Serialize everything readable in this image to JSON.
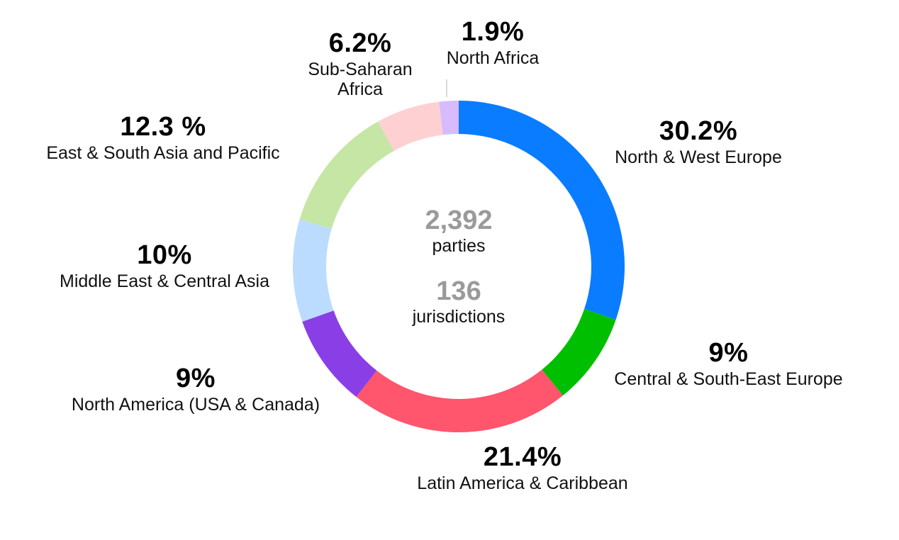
{
  "chart_data": {
    "type": "pie",
    "variant": "donut",
    "slices": [
      {
        "label": "North & West Europe",
        "pct_text": "30.2%",
        "value": 30.2,
        "color": "#0a7cff"
      },
      {
        "label": "Central & South-East Europe",
        "pct_text": "9%",
        "value": 9,
        "color": "#00bf00"
      },
      {
        "label": "Latin America & Caribbean",
        "pct_text": "21.4%",
        "value": 21.4,
        "color": "#ff556d"
      },
      {
        "label": "North America (USA & Canada)",
        "pct_text": "9%",
        "value": 9,
        "color": "#8a3fe6"
      },
      {
        "label": "Middle East & Central Asia",
        "pct_text": "10%",
        "value": 10,
        "color": "#bcdcff"
      },
      {
        "label": "East & South Asia and Pacific",
        "pct_text": "12.3 %",
        "value": 12.3,
        "color": "#c5e6a4"
      },
      {
        "label": "Sub-Saharan Africa",
        "pct_text": "6.2%",
        "value": 6.2,
        "color": "#ffd0d2"
      },
      {
        "label": "North Africa",
        "pct_text": "1.9%",
        "value": 1.9,
        "color": "#d8bbff"
      }
    ],
    "center": {
      "primary_value": "2,392",
      "primary_label": "parties",
      "secondary_value": "136",
      "secondary_label": "jurisdictions"
    }
  }
}
